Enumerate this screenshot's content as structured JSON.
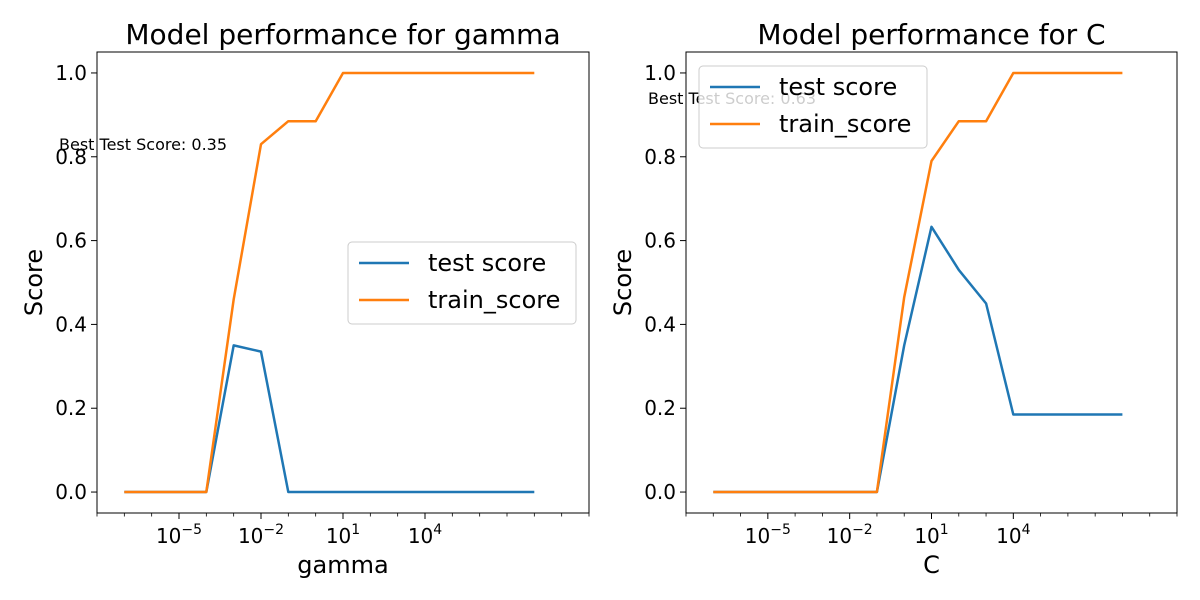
{
  "chart_data": [
    {
      "type": "line",
      "title": "Model performance for gamma",
      "xlabel": "gamma",
      "ylabel": "Score",
      "xscale": "log",
      "xlim": [
        1e-08,
        10000000000.0
      ],
      "ylim": [
        -0.05,
        1.05
      ],
      "x_ticks": [
        {
          "label": "10",
          "exp": "−5"
        },
        {
          "label": "10",
          "exp": "−2"
        },
        {
          "label": "10",
          "exp": "1"
        },
        {
          "label": "10",
          "exp": "4"
        }
      ],
      "y_ticks": [
        "0.0",
        "0.2",
        "0.4",
        "0.6",
        "0.8",
        "1.0"
      ],
      "x": [
        1e-07,
        1e-06,
        1e-05,
        0.0001,
        0.001,
        0.01,
        0.1,
        1,
        10,
        100,
        1000,
        10000,
        100000,
        1000000,
        10000000,
        100000000
      ],
      "series": [
        {
          "name": "test score",
          "color": "#1f77b4",
          "values": [
            0,
            0,
            0,
            0,
            0.35,
            0.335,
            0,
            0,
            0,
            0,
            0,
            0,
            0,
            0,
            0,
            0
          ]
        },
        {
          "name": "train_score",
          "color": "#ff7f0e",
          "values": [
            0,
            0,
            0,
            0,
            0.46,
            0.83,
            0.885,
            0.885,
            1.0,
            1.0,
            1.0,
            1.0,
            1.0,
            1.0,
            1.0,
            1.0
          ]
        }
      ],
      "annotation": "Best Test Score: 0.35",
      "legend_position": "center-right",
      "grid": false
    },
    {
      "type": "line",
      "title": "Model performance for C",
      "xlabel": "C",
      "ylabel": "Score",
      "xscale": "log",
      "xlim": [
        1e-08,
        10000000000.0
      ],
      "ylim": [
        -0.05,
        1.05
      ],
      "x_ticks": [
        {
          "label": "10",
          "exp": "−5"
        },
        {
          "label": "10",
          "exp": "−2"
        },
        {
          "label": "10",
          "exp": "1"
        },
        {
          "label": "10",
          "exp": "4"
        }
      ],
      "y_ticks": [
        "0.0",
        "0.2",
        "0.4",
        "0.6",
        "0.8",
        "1.0"
      ],
      "x": [
        1e-07,
        1e-06,
        1e-05,
        0.0001,
        0.001,
        0.01,
        0.1,
        1,
        10,
        100,
        1000,
        10000,
        100000,
        1000000,
        10000000,
        100000000
      ],
      "series": [
        {
          "name": "test score",
          "color": "#1f77b4",
          "values": [
            0,
            0,
            0,
            0,
            0,
            0,
            0,
            0.35,
            0.633,
            0.53,
            0.45,
            0.185,
            0.185,
            0.185,
            0.185,
            0.185
          ]
        },
        {
          "name": "train_score",
          "color": "#ff7f0e",
          "values": [
            0,
            0,
            0,
            0,
            0,
            0,
            0,
            0.465,
            0.79,
            0.885,
            0.885,
            1.0,
            1.0,
            1.0,
            1.0,
            1.0
          ]
        }
      ],
      "annotation": "Best Test Score: 0.63",
      "legend_position": "upper-left",
      "grid": false
    }
  ]
}
